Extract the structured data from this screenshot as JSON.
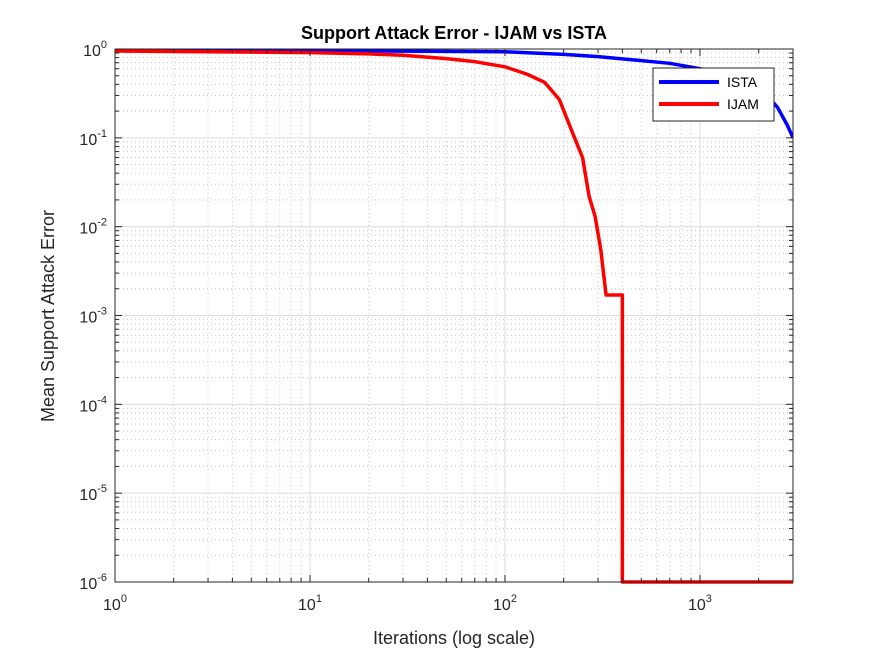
{
  "chart_data": {
    "type": "line",
    "title": "Support Attack Error - IJAM vs ISTA",
    "xlabel": "Iterations (log scale)",
    "ylabel": "Mean Support Attack Error",
    "xscale": "log",
    "yscale": "log",
    "xlim": [
      1,
      3000
    ],
    "ylim": [
      1e-06,
      1
    ],
    "grid": true,
    "minor_grid": true,
    "legend_position": "top-right",
    "x_ticks": [
      {
        "base": "10",
        "exp": "0"
      },
      {
        "base": "10",
        "exp": "1"
      },
      {
        "base": "10",
        "exp": "2"
      },
      {
        "base": "10",
        "exp": "3"
      }
    ],
    "y_ticks": [
      {
        "base": "10",
        "exp": "0"
      },
      {
        "base": "10",
        "exp": "-1"
      },
      {
        "base": "10",
        "exp": "-2"
      },
      {
        "base": "10",
        "exp": "-3"
      },
      {
        "base": "10",
        "exp": "-4"
      },
      {
        "base": "10",
        "exp": "-5"
      },
      {
        "base": "10",
        "exp": "-6"
      }
    ],
    "series": [
      {
        "name": "ISTA",
        "color": "#0000ff",
        "x": [
          1,
          2,
          5,
          10,
          20,
          50,
          100,
          200,
          300,
          500,
          700,
          1000,
          1500,
          2000,
          2500,
          2800,
          3000
        ],
        "y": [
          0.96,
          0.96,
          0.96,
          0.955,
          0.95,
          0.94,
          0.93,
          0.87,
          0.82,
          0.74,
          0.69,
          0.6,
          0.5,
          0.38,
          0.22,
          0.14,
          0.1
        ]
      },
      {
        "name": "IJAM",
        "color": "#ff0000",
        "x": [
          1,
          3,
          10,
          20,
          30,
          50,
          70,
          100,
          130,
          160,
          190,
          220,
          250,
          270,
          290,
          310,
          330,
          350,
          380,
          400,
          400,
          700,
          1000,
          2000,
          3000
        ],
        "y": [
          0.95,
          0.93,
          0.91,
          0.88,
          0.85,
          0.78,
          0.72,
          0.63,
          0.52,
          0.42,
          0.27,
          0.12,
          0.06,
          0.022,
          0.013,
          0.0055,
          0.0017,
          0.0017,
          0.0017,
          0.0017,
          1e-06,
          1e-06,
          1e-06,
          1e-06,
          1e-06
        ]
      }
    ]
  }
}
